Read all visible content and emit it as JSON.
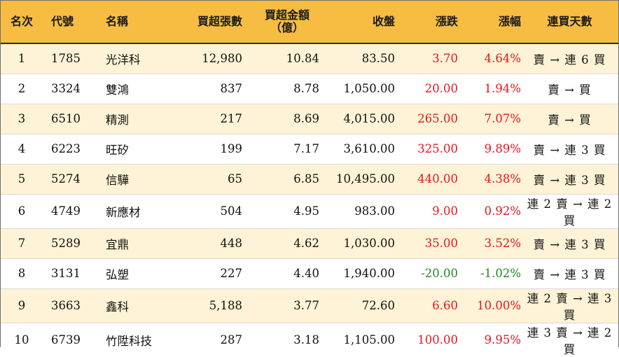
{
  "colors": {
    "header_bg": "#f6bd42",
    "odd_row_bg": "#fef3d6",
    "even_row_bg": "#ffffff",
    "up": "#e8141f",
    "down": "#1f8a1f"
  },
  "header": {
    "rank": "名次",
    "code": "代號",
    "name": "名稱",
    "lots": "買超張數",
    "amount_line1": "買超金額",
    "amount_line2": "（億）",
    "close": "收盤",
    "change": "漲跌",
    "pct": "漲幅",
    "days": "連買天數"
  },
  "rows": [
    {
      "rank": "1",
      "code": "1785",
      "name": "光洋科",
      "lots": "12,980",
      "amount": "10.84",
      "close": "83.50",
      "change": "3.70",
      "pct": "4.64%",
      "days": "賣 → 連 6 買",
      "dir": "up"
    },
    {
      "rank": "2",
      "code": "3324",
      "name": "雙鴻",
      "lots": "837",
      "amount": "8.78",
      "close": "1,050.00",
      "change": "20.00",
      "pct": "1.94%",
      "days": "賣 → 買",
      "dir": "up"
    },
    {
      "rank": "3",
      "code": "6510",
      "name": "精測",
      "lots": "217",
      "amount": "8.69",
      "close": "4,015.00",
      "change": "265.00",
      "pct": "7.07%",
      "days": "賣 → 買",
      "dir": "up"
    },
    {
      "rank": "4",
      "code": "6223",
      "name": "旺矽",
      "lots": "199",
      "amount": "7.17",
      "close": "3,610.00",
      "change": "325.00",
      "pct": "9.89%",
      "days": "賣 → 連 3 買",
      "dir": "up"
    },
    {
      "rank": "5",
      "code": "5274",
      "name": "信驊",
      "lots": "65",
      "amount": "6.85",
      "close": "10,495.00",
      "change": "440.00",
      "pct": "4.38%",
      "days": "賣 → 連 3 買",
      "dir": "up"
    },
    {
      "rank": "6",
      "code": "4749",
      "name": "新應材",
      "lots": "504",
      "amount": "4.95",
      "close": "983.00",
      "change": "9.00",
      "pct": "0.92%",
      "days": "連 2 賣 → 連 2 買",
      "dir": "up"
    },
    {
      "rank": "7",
      "code": "5289",
      "name": "宜鼎",
      "lots": "448",
      "amount": "4.62",
      "close": "1,030.00",
      "change": "35.00",
      "pct": "3.52%",
      "days": "賣 → 連 3 買",
      "dir": "up"
    },
    {
      "rank": "8",
      "code": "3131",
      "name": "弘塑",
      "lots": "227",
      "amount": "4.40",
      "close": "1,940.00",
      "change": "-20.00",
      "pct": "-1.02%",
      "days": "賣 → 連 3 買",
      "dir": "down"
    },
    {
      "rank": "9",
      "code": "3663",
      "name": "鑫科",
      "lots": "5,188",
      "amount": "3.77",
      "close": "72.60",
      "change": "6.60",
      "pct": "10.00%",
      "days": "連 2 賣 → 連 3 買",
      "dir": "up"
    },
    {
      "rank": "10",
      "code": "6739",
      "name": "竹陞科技",
      "lots": "287",
      "amount": "3.18",
      "close": "1,105.00",
      "change": "100.00",
      "pct": "9.95%",
      "days": "連 3 賣 → 連 2 買",
      "dir": "up"
    }
  ]
}
